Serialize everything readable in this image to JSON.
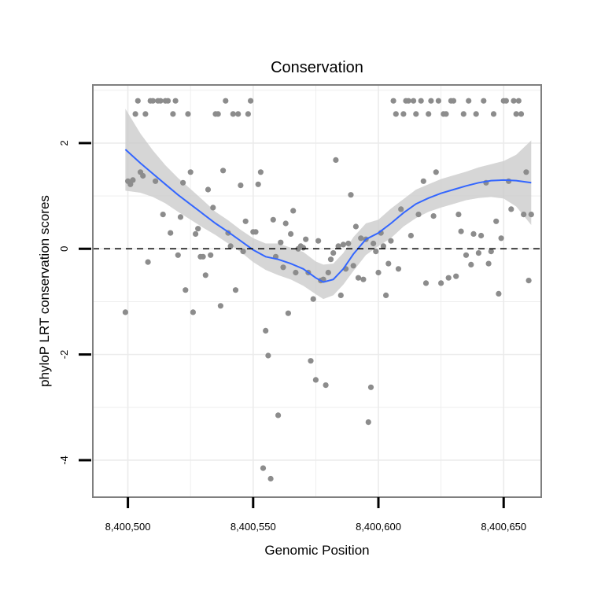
{
  "chart_data": {
    "type": "scatter",
    "title": "Conservation",
    "xlabel": "Genomic Position",
    "ylabel": "phyloP LRT conservation scores",
    "xlim": [
      8400486,
      8400665
    ],
    "ylim": [
      -4.7,
      3.1
    ],
    "x_ticks": [
      8400500,
      8400550,
      8400600,
      8400650
    ],
    "x_tick_labels": [
      "8,400,500",
      "8,400,550",
      "8,400,600",
      "8,400,650"
    ],
    "y_ticks": [
      -4,
      -2,
      0,
      2
    ],
    "y_tick_labels": [
      "-4",
      "-2",
      "0",
      "2"
    ],
    "grid": true,
    "reference_line": {
      "y": 0,
      "style": "dashed"
    },
    "colors": {
      "points": "#8c8c8c",
      "smooth_line": "#3366ff",
      "confidence_band": "#cccccc",
      "grid": "#ebebeb",
      "panel_border": "#7f7f7f"
    },
    "points": [
      [
        8400499,
        -1.2
      ],
      [
        8400500,
        1.28
      ],
      [
        8400501,
        1.22
      ],
      [
        8400502,
        1.3
      ],
      [
        8400503,
        2.55
      ],
      [
        8400504,
        2.8
      ],
      [
        8400505,
        1.45
      ],
      [
        8400506,
        1.38
      ],
      [
        8400507,
        2.55
      ],
      [
        8400508,
        -0.25
      ],
      [
        8400509,
        2.8
      ],
      [
        8400510,
        2.8
      ],
      [
        8400511,
        1.28
      ],
      [
        8400512,
        2.8
      ],
      [
        8400513,
        2.8
      ],
      [
        8400514,
        0.65
      ],
      [
        8400515,
        2.8
      ],
      [
        8400516,
        2.8
      ],
      [
        8400517,
        0.3
      ],
      [
        8400518,
        2.55
      ],
      [
        8400519,
        2.8
      ],
      [
        8400520,
        -0.12
      ],
      [
        8400521,
        0.6
      ],
      [
        8400522,
        1.25
      ],
      [
        8400523,
        -0.78
      ],
      [
        8400524,
        2.55
      ],
      [
        8400525,
        1.45
      ],
      [
        8400526,
        -1.2
      ],
      [
        8400527,
        0.28
      ],
      [
        8400528,
        0.38
      ],
      [
        8400529,
        -0.15
      ],
      [
        8400530,
        -0.15
      ],
      [
        8400531,
        -0.5
      ],
      [
        8400532,
        1.12
      ],
      [
        8400533,
        -0.12
      ],
      [
        8400534,
        0.78
      ],
      [
        8400535,
        2.55
      ],
      [
        8400536,
        2.55
      ],
      [
        8400537,
        -1.08
      ],
      [
        8400538,
        1.48
      ],
      [
        8400539,
        2.8
      ],
      [
        8400540,
        0.3
      ],
      [
        8400541,
        0.05
      ],
      [
        8400542,
        2.55
      ],
      [
        8400543,
        -0.78
      ],
      [
        8400544,
        2.55
      ],
      [
        8400545,
        1.2
      ],
      [
        8400546,
        -0.05
      ],
      [
        8400547,
        0.52
      ],
      [
        8400548,
        2.55
      ],
      [
        8400549,
        2.8
      ],
      [
        8400550,
        0.32
      ],
      [
        8400551,
        0.32
      ],
      [
        8400552,
        1.22
      ],
      [
        8400553,
        1.45
      ],
      [
        8400554,
        -4.15
      ],
      [
        8400555,
        -1.55
      ],
      [
        8400556,
        -2.02
      ],
      [
        8400557,
        -4.35
      ],
      [
        8400558,
        0.55
      ],
      [
        8400559,
        -0.15
      ],
      [
        8400560,
        -3.15
      ],
      [
        8400561,
        0.12
      ],
      [
        8400562,
        -0.35
      ],
      [
        8400563,
        0.48
      ],
      [
        8400564,
        -1.22
      ],
      [
        8400565,
        0.28
      ],
      [
        8400566,
        0.72
      ],
      [
        8400567,
        -0.45
      ],
      [
        8400568,
        0.0
      ],
      [
        8400569,
        0.05
      ],
      [
        8400570,
        0.02
      ],
      [
        8400571,
        0.18
      ],
      [
        8400572,
        -0.45
      ],
      [
        8400573,
        -2.12
      ],
      [
        8400574,
        -0.95
      ],
      [
        8400575,
        -2.48
      ],
      [
        8400576,
        0.15
      ],
      [
        8400577,
        -0.6
      ],
      [
        8400578,
        -0.58
      ],
      [
        8400579,
        -2.58
      ],
      [
        8400580,
        -0.45
      ],
      [
        8400581,
        -0.2
      ],
      [
        8400582,
        -0.08
      ],
      [
        8400583,
        1.68
      ],
      [
        8400584,
        0.05
      ],
      [
        8400585,
        -0.88
      ],
      [
        8400586,
        0.08
      ],
      [
        8400587,
        -0.38
      ],
      [
        8400588,
        0.1
      ],
      [
        8400589,
        1.02
      ],
      [
        8400590,
        -0.32
      ],
      [
        8400591,
        0.42
      ],
      [
        8400592,
        -0.55
      ],
      [
        8400593,
        0.2
      ],
      [
        8400594,
        -0.58
      ],
      [
        8400595,
        0.18
      ],
      [
        8400596,
        -3.28
      ],
      [
        8400597,
        -2.62
      ],
      [
        8400598,
        0.1
      ],
      [
        8400599,
        -0.05
      ],
      [
        8400600,
        -0.45
      ],
      [
        8400601,
        0.3
      ],
      [
        8400602,
        0.05
      ],
      [
        8400603,
        -0.88
      ],
      [
        8400604,
        -0.28
      ],
      [
        8400605,
        0.15
      ],
      [
        8400606,
        2.8
      ],
      [
        8400607,
        2.55
      ],
      [
        8400608,
        -0.38
      ],
      [
        8400609,
        0.75
      ],
      [
        8400610,
        2.55
      ],
      [
        8400611,
        2.8
      ],
      [
        8400612,
        2.8
      ],
      [
        8400613,
        0.25
      ],
      [
        8400614,
        2.8
      ],
      [
        8400615,
        2.55
      ],
      [
        8400616,
        0.65
      ],
      [
        8400617,
        2.8
      ],
      [
        8400618,
        1.28
      ],
      [
        8400619,
        -0.65
      ],
      [
        8400620,
        2.55
      ],
      [
        8400621,
        2.8
      ],
      [
        8400622,
        0.62
      ],
      [
        8400623,
        1.45
      ],
      [
        8400624,
        2.8
      ],
      [
        8400625,
        -0.65
      ],
      [
        8400626,
        2.55
      ],
      [
        8400627,
        2.55
      ],
      [
        8400628,
        -0.55
      ],
      [
        8400629,
        2.8
      ],
      [
        8400630,
        2.8
      ],
      [
        8400631,
        -0.52
      ],
      [
        8400632,
        0.65
      ],
      [
        8400633,
        0.33
      ],
      [
        8400634,
        2.55
      ],
      [
        8400635,
        -0.12
      ],
      [
        8400636,
        2.8
      ],
      [
        8400637,
        -0.3
      ],
      [
        8400638,
        0.28
      ],
      [
        8400639,
        2.55
      ],
      [
        8400640,
        -0.08
      ],
      [
        8400641,
        0.25
      ],
      [
        8400642,
        2.8
      ],
      [
        8400643,
        1.25
      ],
      [
        8400644,
        -0.28
      ],
      [
        8400645,
        -0.05
      ],
      [
        8400646,
        2.55
      ],
      [
        8400647,
        0.52
      ],
      [
        8400648,
        -0.85
      ],
      [
        8400649,
        0.2
      ],
      [
        8400650,
        2.8
      ],
      [
        8400651,
        2.8
      ],
      [
        8400652,
        1.28
      ],
      [
        8400653,
        0.75
      ],
      [
        8400654,
        2.8
      ],
      [
        8400655,
        2.55
      ],
      [
        8400656,
        2.8
      ],
      [
        8400657,
        2.55
      ],
      [
        8400658,
        0.65
      ],
      [
        8400659,
        1.45
      ],
      [
        8400660,
        -0.6
      ],
      [
        8400661,
        0.65
      ]
    ],
    "smooth": {
      "x": [
        8400499,
        8400505,
        8400510,
        8400515,
        8400520,
        8400525,
        8400530,
        8400535,
        8400540,
        8400545,
        8400550,
        8400555,
        8400560,
        8400565,
        8400570,
        8400575,
        8400578,
        8400582,
        8400586,
        8400590,
        8400595,
        8400600,
        8400605,
        8400610,
        8400615,
        8400620,
        8400625,
        8400630,
        8400635,
        8400640,
        8400645,
        8400650,
        8400655,
        8400661
      ],
      "y": [
        1.88,
        1.62,
        1.42,
        1.22,
        1.02,
        0.84,
        0.66,
        0.48,
        0.32,
        0.15,
        -0.02,
        -0.15,
        -0.2,
        -0.28,
        -0.38,
        -0.55,
        -0.63,
        -0.58,
        -0.38,
        -0.1,
        0.18,
        0.3,
        0.48,
        0.68,
        0.85,
        0.96,
        1.05,
        1.12,
        1.19,
        1.25,
        1.29,
        1.3,
        1.29,
        1.25
      ],
      "lower": [
        1.1,
        1.06,
        0.98,
        0.86,
        0.7,
        0.55,
        0.4,
        0.26,
        0.1,
        -0.06,
        -0.25,
        -0.4,
        -0.5,
        -0.58,
        -0.7,
        -0.86,
        -0.95,
        -0.88,
        -0.68,
        -0.42,
        -0.12,
        0.05,
        0.2,
        0.42,
        0.58,
        0.7,
        0.78,
        0.85,
        0.92,
        0.96,
        0.98,
        0.95,
        0.8,
        0.45
      ],
      "upper": [
        2.65,
        2.18,
        1.86,
        1.58,
        1.34,
        1.13,
        0.92,
        0.7,
        0.54,
        0.36,
        0.2,
        0.1,
        0.1,
        0.02,
        -0.06,
        -0.24,
        -0.3,
        -0.28,
        -0.08,
        0.22,
        0.48,
        0.55,
        0.76,
        0.94,
        1.12,
        1.22,
        1.32,
        1.39,
        1.46,
        1.54,
        1.6,
        1.66,
        1.78,
        2.05
      ]
    }
  }
}
